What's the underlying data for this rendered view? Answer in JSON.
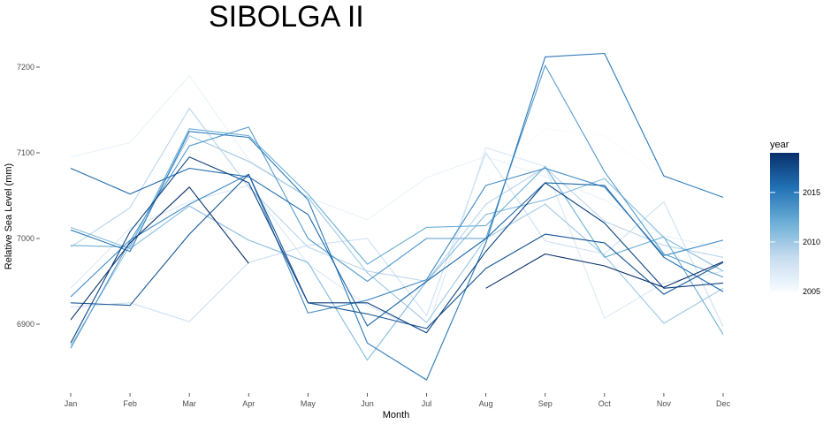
{
  "chart_data": {
    "type": "line",
    "title": "SIBOLGA II",
    "xlabel": "Month",
    "ylabel": "Relative Sea Level (mm)",
    "categories": [
      "Jan",
      "Feb",
      "Mar",
      "Apr",
      "May",
      "Jun",
      "Jul",
      "Aug",
      "Sep",
      "Oct",
      "Nov",
      "Dec"
    ],
    "ylim": [
      6840,
      7225
    ],
    "yticks": [
      6900,
      7000,
      7100,
      7200
    ],
    "grid": false,
    "legend": {
      "title": "year",
      "position": "right",
      "type": "colorbar",
      "range": [
        2005,
        2019
      ],
      "ticks": [
        2005,
        2010,
        2015
      ],
      "colors": [
        "#f7fbff",
        "#c6dbef",
        "#6baed6",
        "#2171b5",
        "#08306b"
      ]
    },
    "series": [
      {
        "year": 2005,
        "values": [
          null,
          null,
          null,
          null,
          null,
          null,
          null,
          7072,
          7128,
          7120,
          7070,
          null
        ]
      },
      {
        "year": 2006,
        "values": [
          7095,
          7112,
          7190,
          7092,
          7048,
          7022,
          7071,
          7096,
          7072,
          7045,
          7003,
          6988
        ]
      },
      {
        "year": 2007,
        "values": [
          6942,
          7012,
          7043,
          7062,
          6970,
          6922,
          6890,
          7106,
          7084,
          6907,
          6948,
          6962
        ]
      },
      {
        "year": 2008,
        "values": [
          6920,
          6925,
          6903,
          6972,
          6992,
          7000,
          6910,
          7100,
          6997,
          6982,
          7043,
          6897
        ]
      },
      {
        "year": 2009,
        "values": [
          6990,
          7036,
          7152,
          7060,
          6990,
          6962,
          6950,
          7040,
          7083,
          7020,
          6992,
          6978
        ]
      },
      {
        "year": 2010,
        "values": [
          6875,
          6992,
          7120,
          7090,
          7048,
          6960,
          6902,
          7000,
          7040,
          6980,
          6901,
          6942
        ]
      },
      {
        "year": 2011,
        "values": [
          7013,
          6988,
          7038,
          6998,
          6972,
          6858,
          6950,
          7028,
          7045,
          7070,
          7001,
          6962
        ]
      },
      {
        "year": 2012,
        "values": [
          6992,
          6990,
          7128,
          7120,
          7052,
          6970,
          7013,
          7015,
          7084,
          6978,
          7002,
          6888
        ]
      },
      {
        "year": 2013,
        "values": [
          6872,
          6997,
          7108,
          7130,
          7000,
          6950,
          7000,
          7000,
          7202,
          7078,
          6982,
          6955
        ]
      },
      {
        "year": 2014,
        "values": [
          6932,
          6998,
          7040,
          7075,
          6913,
          6928,
          6952,
          7062,
          7082,
          7060,
          6980,
          6998
        ]
      },
      {
        "year": 2015,
        "values": [
          7010,
          6985,
          7125,
          7118,
          7045,
          6878,
          6835,
          6995,
          7212,
          7216,
          7073,
          7048
        ]
      },
      {
        "year": 2016,
        "values": [
          7082,
          7052,
          7082,
          7072,
          7028,
          6898,
          6950,
          7000,
          7065,
          7062,
          6978,
          6938
        ]
      },
      {
        "year": 2017,
        "values": [
          6925,
          6922,
          7005,
          7075,
          6925,
          6912,
          6895,
          6965,
          7005,
          6995,
          6935,
          6972
        ]
      },
      {
        "year": 2018,
        "values": [
          6878,
          7008,
          7095,
          7065,
          6925,
          6925,
          6890,
          6985,
          7065,
          7018,
          6942,
          6948
        ]
      },
      {
        "year": 2019,
        "values": [
          6905,
          6995,
          7060,
          6971,
          null,
          null,
          null,
          6942,
          6982,
          6968,
          6943,
          6973
        ]
      }
    ]
  }
}
